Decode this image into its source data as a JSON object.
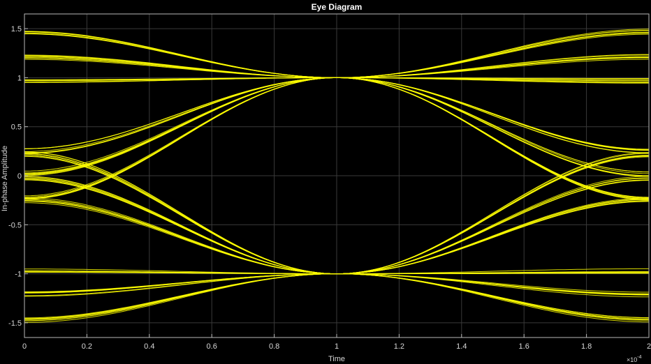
{
  "window_title": "Eye Diagram",
  "colors": {
    "background": "#000000",
    "plot_area": "#000000",
    "grid": "#3a3a3a",
    "axis": "#b8b8b8",
    "text": "#d8d8d8",
    "trace": "#ffff00"
  },
  "chart_data": {
    "type": "line",
    "title": "Eye Diagram",
    "xlabel": "Time",
    "ylabel": "In-phase Amplitude",
    "x_exponent_label": "×10",
    "x_exponent_power": "-4",
    "xlim": [
      0,
      2
    ],
    "ylim": [
      -1.65,
      1.65
    ],
    "x_ticks": [
      0,
      0.2,
      0.4,
      0.6,
      0.8,
      1,
      1.2,
      1.4,
      1.6,
      1.8,
      2
    ],
    "x_tick_labels": [
      "0",
      "0.2",
      "0.4",
      "0.6",
      "0.8",
      "1",
      "1.2",
      "1.4",
      "1.6",
      "1.8",
      "2"
    ],
    "y_ticks": [
      1.5,
      1,
      0.5,
      0,
      -0.5,
      -1,
      -1.5
    ],
    "y_tick_labels": [
      "1.5",
      "1",
      "0.5",
      "0",
      "-0.5",
      "-1",
      "-1.5"
    ],
    "grid": true,
    "eye_crossings": [
      {
        "x": 1,
        "y": 1
      },
      {
        "x": 1,
        "y": -1
      }
    ],
    "trace_bands": [
      {
        "side": "left",
        "from": 1.47,
        "to": 1
      },
      {
        "side": "left",
        "from": 1.21,
        "to": 1
      },
      {
        "side": "left",
        "from": 0.97,
        "to": 1
      },
      {
        "side": "left",
        "from": 0.25,
        "to": 1
      },
      {
        "side": "left",
        "from": 0.02,
        "to": 1
      },
      {
        "side": "left",
        "from": -0.22,
        "to": 1
      },
      {
        "side": "left",
        "from": 0.22,
        "to": -1
      },
      {
        "side": "left",
        "from": -0.02,
        "to": -1
      },
      {
        "side": "left",
        "from": -0.25,
        "to": -1
      },
      {
        "side": "left",
        "from": -0.97,
        "to": -1
      },
      {
        "side": "left",
        "from": -1.21,
        "to": -1
      },
      {
        "side": "left",
        "from": -1.47,
        "to": -1
      },
      {
        "side": "right",
        "from": 1,
        "to": 1.47
      },
      {
        "side": "right",
        "from": 1,
        "to": 1.21
      },
      {
        "side": "right",
        "from": 1,
        "to": 0.97
      },
      {
        "side": "right",
        "from": 1,
        "to": 0.25
      },
      {
        "side": "right",
        "from": 1,
        "to": 0.02
      },
      {
        "side": "right",
        "from": 1,
        "to": -0.22
      },
      {
        "side": "right",
        "from": -1,
        "to": 0.22
      },
      {
        "side": "right",
        "from": -1,
        "to": -0.02
      },
      {
        "side": "right",
        "from": -1,
        "to": -0.25
      },
      {
        "side": "right",
        "from": -1,
        "to": -0.97
      },
      {
        "side": "right",
        "from": -1,
        "to": -1.21
      },
      {
        "side": "right",
        "from": -1,
        "to": -1.47
      }
    ]
  }
}
